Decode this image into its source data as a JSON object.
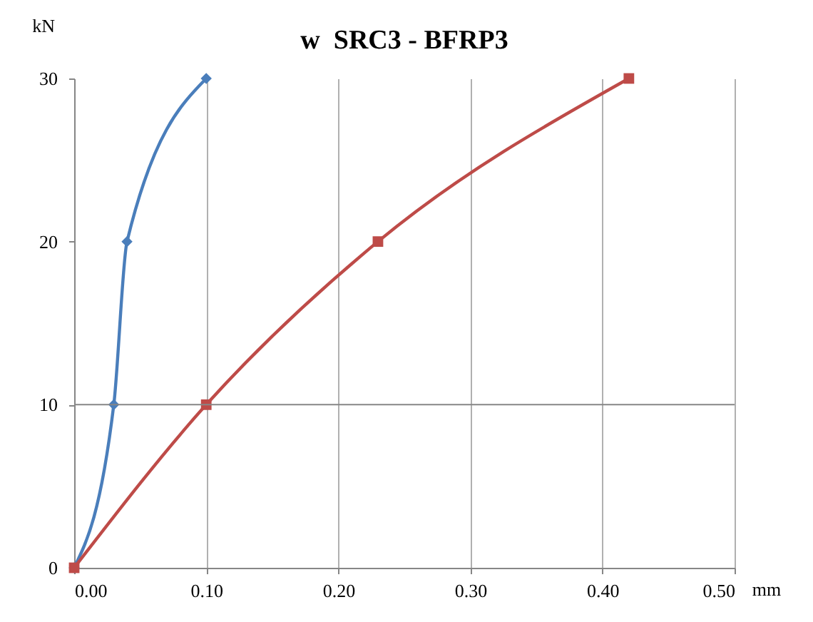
{
  "chart_data": {
    "type": "line",
    "title": "w  SRC3 - BFRP3",
    "xlabel": "mm",
    "ylabel": "kN",
    "xlim": [
      0,
      0.5
    ],
    "xticks": [
      {
        "value": 0,
        "label": "0.00"
      },
      {
        "value": 0.1,
        "label": "0.10"
      },
      {
        "value": 0.2,
        "label": "0.20"
      },
      {
        "value": 0.3,
        "label": "0.30"
      },
      {
        "value": 0.4,
        "label": "0.40"
      },
      {
        "value": 0.5,
        "label": "0.50"
      }
    ],
    "ylim": [
      0,
      30
    ],
    "yticks": [
      0,
      10,
      20,
      30
    ],
    "grid": "x",
    "ref_lines": [
      {
        "axis": "y",
        "value": 10,
        "color": "#868686"
      }
    ],
    "series": [
      {
        "color": "#4a7ebb",
        "marker": "diamond",
        "x": [
          0,
          0.03,
          0.04,
          0.1
        ],
        "values": [
          0,
          10,
          20,
          30
        ]
      },
      {
        "color": "#be4b48",
        "marker": "square",
        "x": [
          0,
          0.1,
          0.23,
          0.42
        ],
        "values": [
          0,
          10,
          20,
          30
        ]
      }
    ]
  }
}
